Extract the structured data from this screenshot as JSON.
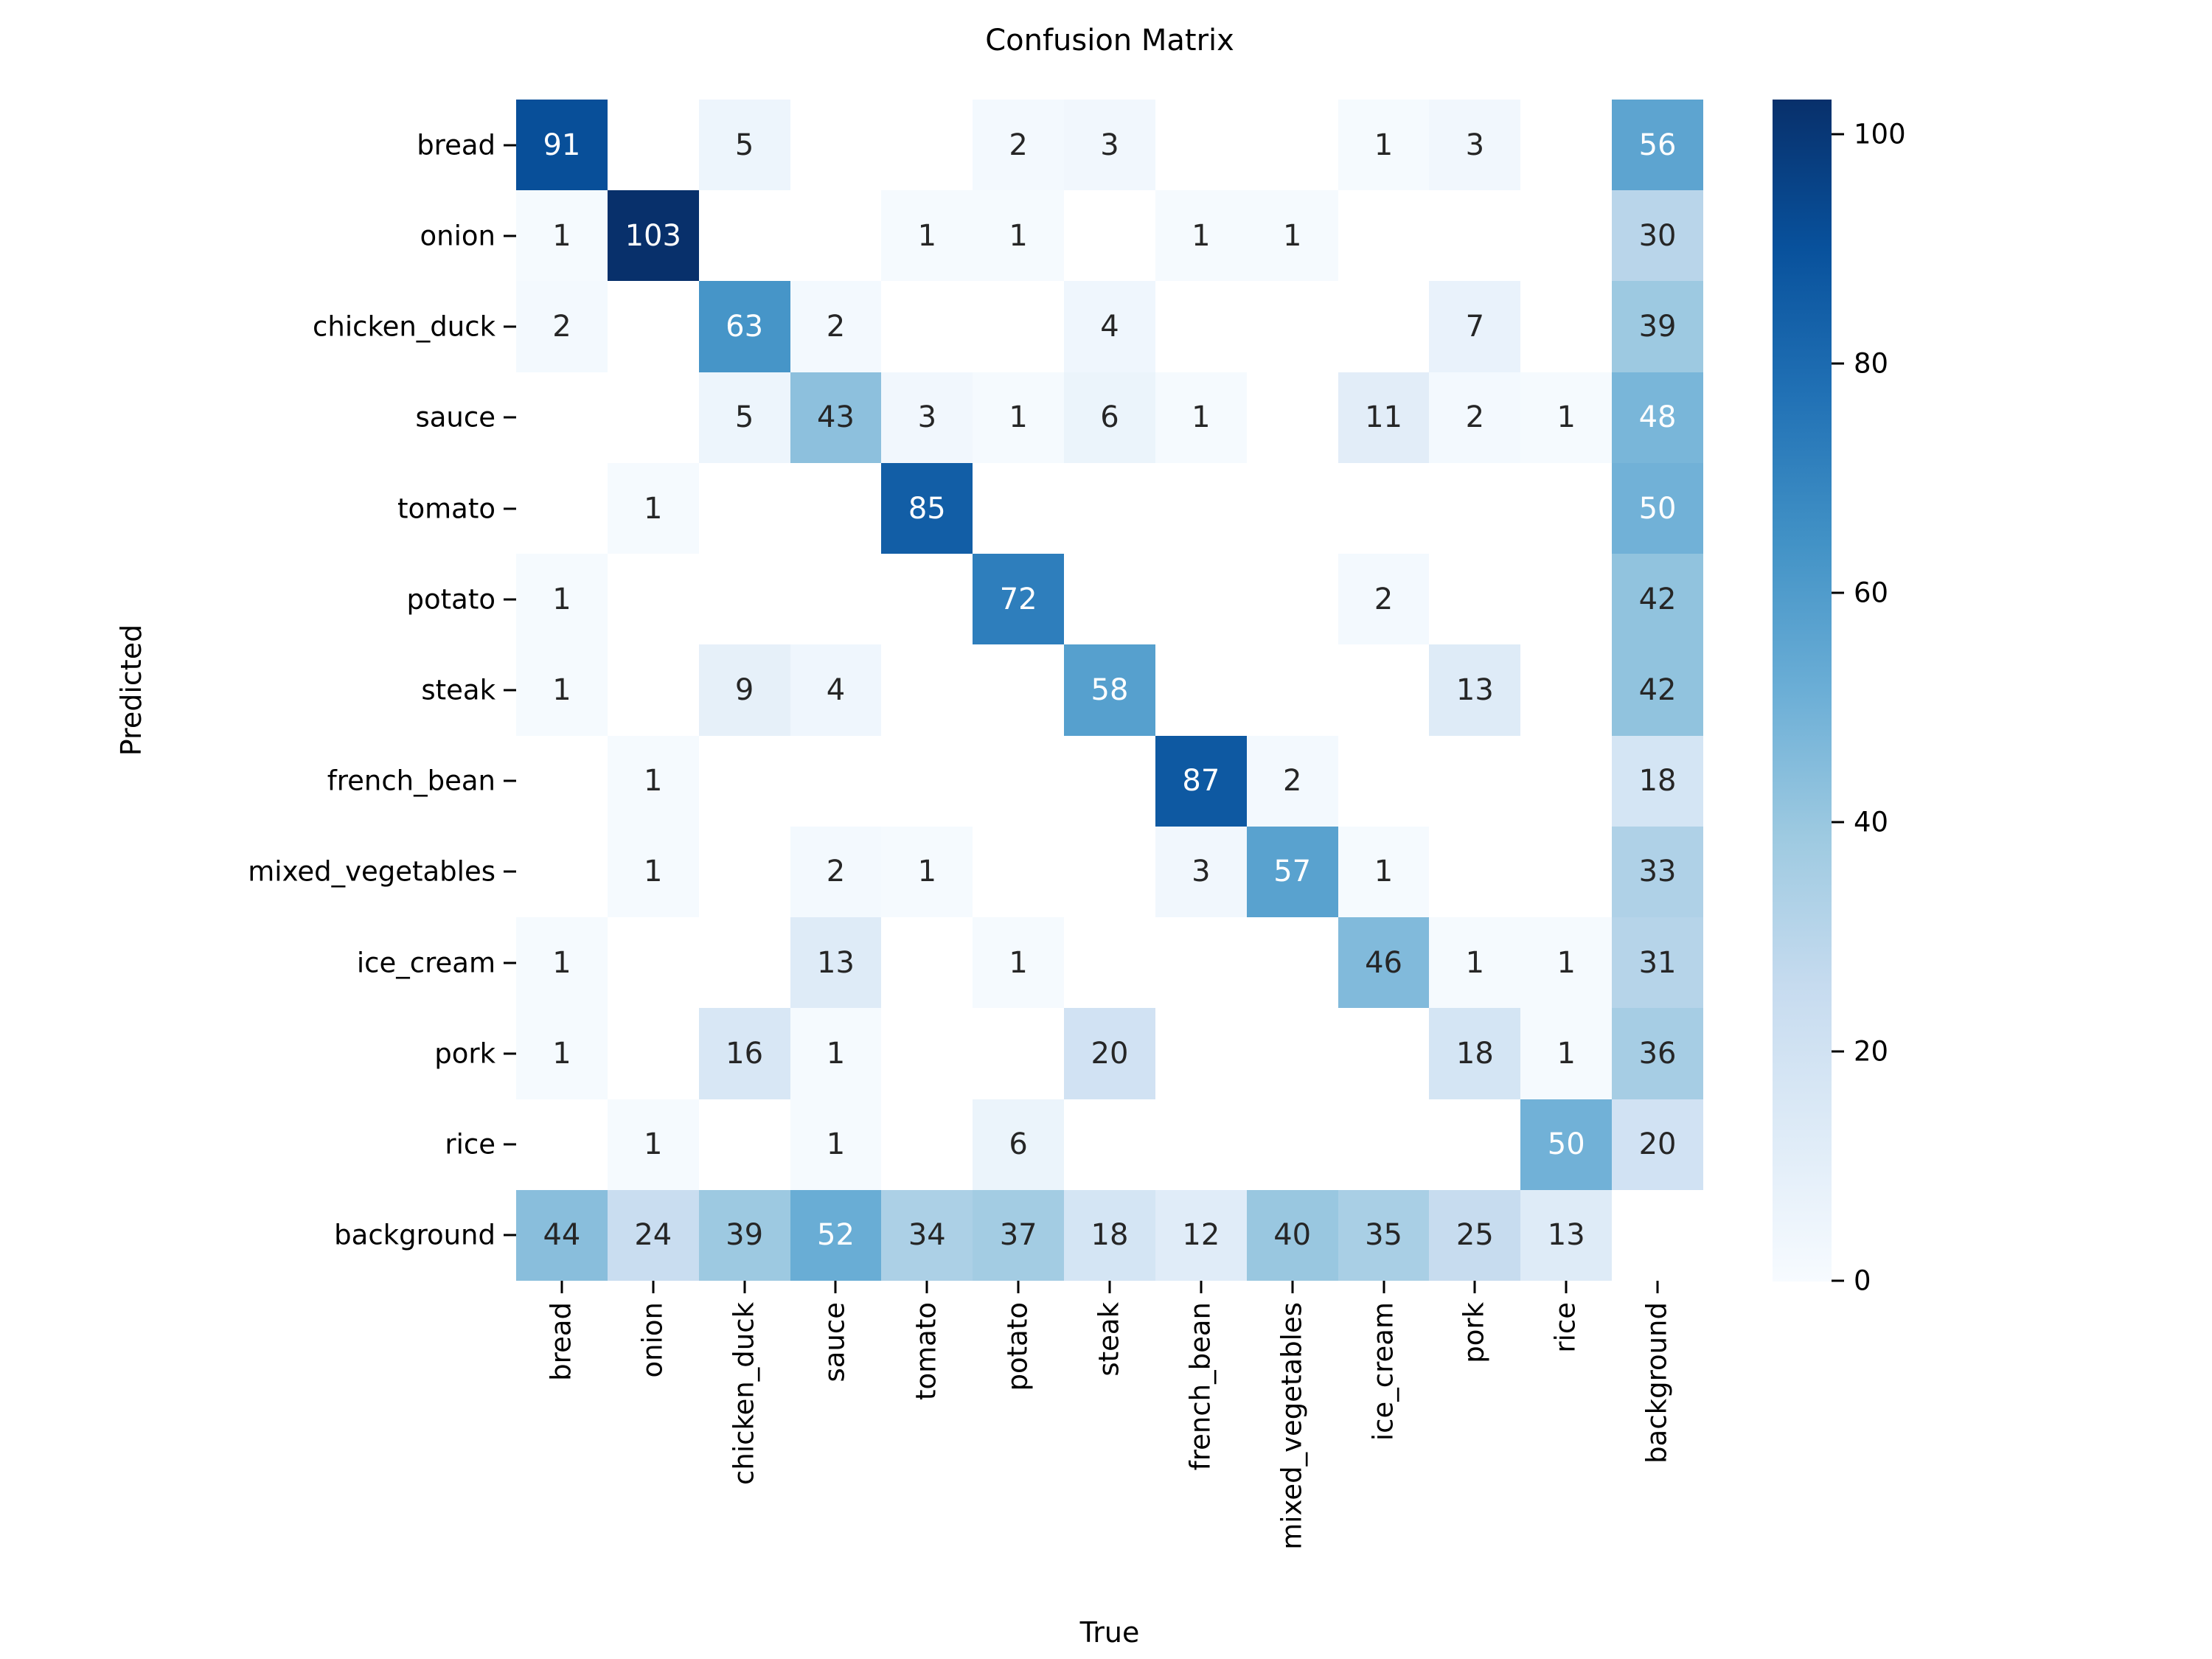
{
  "figure": {
    "title": "Confusion Matrix",
    "background_color": "#ffffff"
  },
  "chart_data": {
    "type": "heatmap",
    "title": "Confusion Matrix",
    "xlabel": "True",
    "ylabel": "Predicted",
    "x_categories": [
      "bread",
      "onion",
      "chicken_duck",
      "sauce",
      "tomato",
      "potato",
      "steak",
      "french_bean",
      "mixed_vegetables",
      "ice_cream",
      "pork",
      "rice",
      "background"
    ],
    "y_categories": [
      "bread",
      "onion",
      "chicken_duck",
      "sauce",
      "tomato",
      "potato",
      "steak",
      "french_bean",
      "mixed_vegetables",
      "ice_cream",
      "pork",
      "rice",
      "background"
    ],
    "matrix": [
      [
        91,
        0,
        5,
        0,
        0,
        2,
        3,
        0,
        0,
        1,
        3,
        0,
        56
      ],
      [
        1,
        103,
        0,
        0,
        1,
        1,
        0,
        1,
        1,
        0,
        0,
        0,
        30
      ],
      [
        2,
        0,
        63,
        2,
        0,
        0,
        4,
        0,
        0,
        0,
        7,
        0,
        39
      ],
      [
        0,
        0,
        5,
        43,
        3,
        1,
        6,
        1,
        0,
        11,
        2,
        1,
        48
      ],
      [
        0,
        1,
        0,
        0,
        85,
        0,
        0,
        0,
        0,
        0,
        0,
        0,
        50
      ],
      [
        1,
        0,
        0,
        0,
        0,
        72,
        0,
        0,
        0,
        2,
        0,
        0,
        42
      ],
      [
        1,
        0,
        9,
        4,
        0,
        0,
        58,
        0,
        0,
        0,
        13,
        0,
        42
      ],
      [
        0,
        1,
        0,
        0,
        0,
        0,
        0,
        87,
        2,
        0,
        0,
        0,
        18
      ],
      [
        0,
        1,
        0,
        2,
        1,
        0,
        0,
        3,
        57,
        1,
        0,
        0,
        33
      ],
      [
        1,
        0,
        0,
        13,
        0,
        1,
        0,
        0,
        0,
        46,
        1,
        1,
        31
      ],
      [
        1,
        0,
        16,
        1,
        0,
        0,
        20,
        0,
        0,
        0,
        18,
        1,
        36
      ],
      [
        0,
        1,
        0,
        1,
        0,
        6,
        0,
        0,
        0,
        0,
        0,
        50,
        20
      ],
      [
        44,
        24,
        39,
        52,
        34,
        37,
        18,
        12,
        40,
        35,
        25,
        13,
        0
      ]
    ],
    "vmin": 0,
    "vmax": 103,
    "colormap": "Blues",
    "colormap_anchors": [
      "#f7fbff",
      "#deebf7",
      "#c6dbef",
      "#9ecae1",
      "#6baed6",
      "#4292c6",
      "#2171b5",
      "#08519c",
      "#08306b"
    ],
    "masked_zero": true,
    "colorbar_ticks": [
      0,
      20,
      40,
      60,
      80,
      100
    ],
    "annotation_colors": {
      "dark_text": "#262626",
      "light_text": "#ffffff"
    },
    "legend_position": "right",
    "grid": false
  }
}
